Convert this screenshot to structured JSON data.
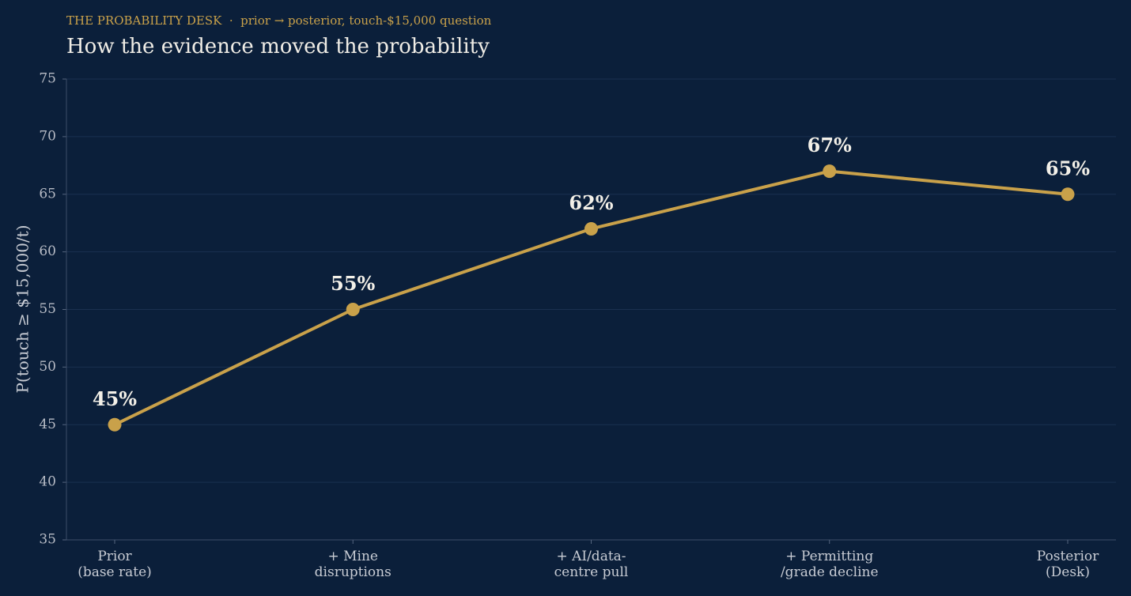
{
  "chart_data": {
    "type": "line",
    "subtitle": "THE PROBABILITY DESK  ·  prior → posterior, touch-$15,000 question",
    "title": "How the evidence moved the probability",
    "y_label": "P(touch ≥ $15,000/t)",
    "categories": [
      "Prior\n(base rate)",
      "+ Mine\ndisruptions",
      "+ AI/data-\ncentre pull",
      "+ Permitting\n/grade decline",
      "Posterior\n(Desk)"
    ],
    "values": [
      45,
      55,
      62,
      67,
      65
    ],
    "value_labels": [
      "45%",
      "55%",
      "62%",
      "67%",
      "65%"
    ],
    "color": "#c9a14a",
    "ylim": [
      35,
      75
    ],
    "yticks": [
      35,
      40,
      45,
      50,
      55,
      60,
      65,
      70,
      75
    ],
    "grid": true
  }
}
